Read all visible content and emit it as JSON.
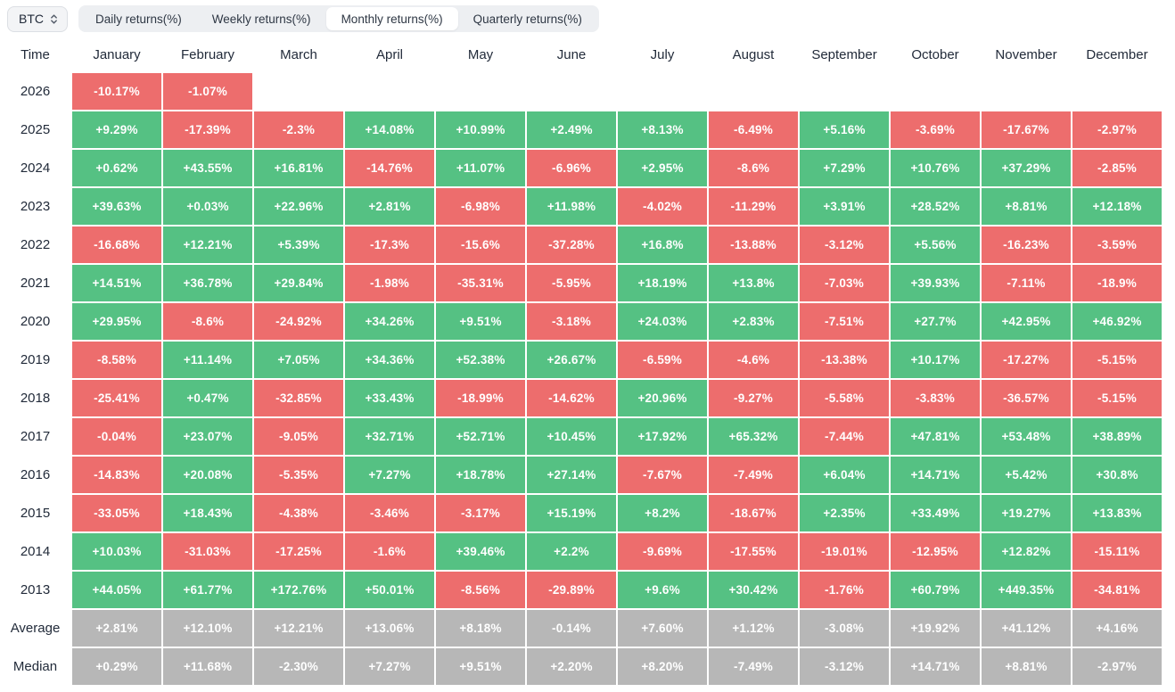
{
  "toolbar": {
    "symbol_selector": {
      "label": "BTC"
    },
    "tabs": [
      {
        "label": "Daily returns(%)",
        "active": false
      },
      {
        "label": "Weekly returns(%)",
        "active": false
      },
      {
        "label": "Monthly returns(%)",
        "active": true
      },
      {
        "label": "Quarterly returns(%)",
        "active": false
      }
    ]
  },
  "colors": {
    "positive": "#55c183",
    "negative": "#ed6d6d",
    "summary": "#b7b7b7",
    "cell_text": "#ffffff",
    "header_text": "#222b3a",
    "tab_bar_bg": "#edeff2",
    "active_tab_bg": "#ffffff"
  },
  "chart_data": {
    "type": "table",
    "title": "BTC Monthly returns(%)",
    "columns": [
      "Time",
      "January",
      "February",
      "March",
      "April",
      "May",
      "June",
      "July",
      "August",
      "September",
      "October",
      "November",
      "December"
    ],
    "rows": [
      {
        "label": "2026",
        "type": "year",
        "values": [
          "-10.17%",
          "-1.07%",
          "",
          "",
          "",
          "",
          "",
          "",
          "",
          "",
          "",
          ""
        ]
      },
      {
        "label": "2025",
        "type": "year",
        "values": [
          "+9.29%",
          "-17.39%",
          "-2.3%",
          "+14.08%",
          "+10.99%",
          "+2.49%",
          "+8.13%",
          "-6.49%",
          "+5.16%",
          "-3.69%",
          "-17.67%",
          "-2.97%"
        ]
      },
      {
        "label": "2024",
        "type": "year",
        "values": [
          "+0.62%",
          "+43.55%",
          "+16.81%",
          "-14.76%",
          "+11.07%",
          "-6.96%",
          "+2.95%",
          "-8.6%",
          "+7.29%",
          "+10.76%",
          "+37.29%",
          "-2.85%"
        ]
      },
      {
        "label": "2023",
        "type": "year",
        "values": [
          "+39.63%",
          "+0.03%",
          "+22.96%",
          "+2.81%",
          "-6.98%",
          "+11.98%",
          "-4.02%",
          "-11.29%",
          "+3.91%",
          "+28.52%",
          "+8.81%",
          "+12.18%"
        ]
      },
      {
        "label": "2022",
        "type": "year",
        "values": [
          "-16.68%",
          "+12.21%",
          "+5.39%",
          "-17.3%",
          "-15.6%",
          "-37.28%",
          "+16.8%",
          "-13.88%",
          "-3.12%",
          "+5.56%",
          "-16.23%",
          "-3.59%"
        ]
      },
      {
        "label": "2021",
        "type": "year",
        "values": [
          "+14.51%",
          "+36.78%",
          "+29.84%",
          "-1.98%",
          "-35.31%",
          "-5.95%",
          "+18.19%",
          "+13.8%",
          "-7.03%",
          "+39.93%",
          "-7.11%",
          "-18.9%"
        ]
      },
      {
        "label": "2020",
        "type": "year",
        "values": [
          "+29.95%",
          "-8.6%",
          "-24.92%",
          "+34.26%",
          "+9.51%",
          "-3.18%",
          "+24.03%",
          "+2.83%",
          "-7.51%",
          "+27.7%",
          "+42.95%",
          "+46.92%"
        ]
      },
      {
        "label": "2019",
        "type": "year",
        "values": [
          "-8.58%",
          "+11.14%",
          "+7.05%",
          "+34.36%",
          "+52.38%",
          "+26.67%",
          "-6.59%",
          "-4.6%",
          "-13.38%",
          "+10.17%",
          "-17.27%",
          "-5.15%"
        ]
      },
      {
        "label": "2018",
        "type": "year",
        "values": [
          "-25.41%",
          "+0.47%",
          "-32.85%",
          "+33.43%",
          "-18.99%",
          "-14.62%",
          "+20.96%",
          "-9.27%",
          "-5.58%",
          "-3.83%",
          "-36.57%",
          "-5.15%"
        ]
      },
      {
        "label": "2017",
        "type": "year",
        "values": [
          "-0.04%",
          "+23.07%",
          "-9.05%",
          "+32.71%",
          "+52.71%",
          "+10.45%",
          "+17.92%",
          "+65.32%",
          "-7.44%",
          "+47.81%",
          "+53.48%",
          "+38.89%"
        ]
      },
      {
        "label": "2016",
        "type": "year",
        "values": [
          "-14.83%",
          "+20.08%",
          "-5.35%",
          "+7.27%",
          "+18.78%",
          "+27.14%",
          "-7.67%",
          "-7.49%",
          "+6.04%",
          "+14.71%",
          "+5.42%",
          "+30.8%"
        ]
      },
      {
        "label": "2015",
        "type": "year",
        "values": [
          "-33.05%",
          "+18.43%",
          "-4.38%",
          "-3.46%",
          "-3.17%",
          "+15.19%",
          "+8.2%",
          "-18.67%",
          "+2.35%",
          "+33.49%",
          "+19.27%",
          "+13.83%"
        ]
      },
      {
        "label": "2014",
        "type": "year",
        "values": [
          "+10.03%",
          "-31.03%",
          "-17.25%",
          "-1.6%",
          "+39.46%",
          "+2.2%",
          "-9.69%",
          "-17.55%",
          "-19.01%",
          "-12.95%",
          "+12.82%",
          "-15.11%"
        ]
      },
      {
        "label": "2013",
        "type": "year",
        "values": [
          "+44.05%",
          "+61.77%",
          "+172.76%",
          "+50.01%",
          "-8.56%",
          "-29.89%",
          "+9.6%",
          "+30.42%",
          "-1.76%",
          "+60.79%",
          "+449.35%",
          "-34.81%"
        ]
      },
      {
        "label": "Average",
        "type": "summary",
        "values": [
          "+2.81%",
          "+12.10%",
          "+12.21%",
          "+13.06%",
          "+8.18%",
          "-0.14%",
          "+7.60%",
          "+1.12%",
          "-3.08%",
          "+19.92%",
          "+41.12%",
          "+4.16%"
        ]
      },
      {
        "label": "Median",
        "type": "summary",
        "values": [
          "+0.29%",
          "+11.68%",
          "-2.30%",
          "+7.27%",
          "+9.51%",
          "+2.20%",
          "+8.20%",
          "-7.49%",
          "-3.12%",
          "+14.71%",
          "+8.81%",
          "-2.97%"
        ]
      }
    ]
  }
}
